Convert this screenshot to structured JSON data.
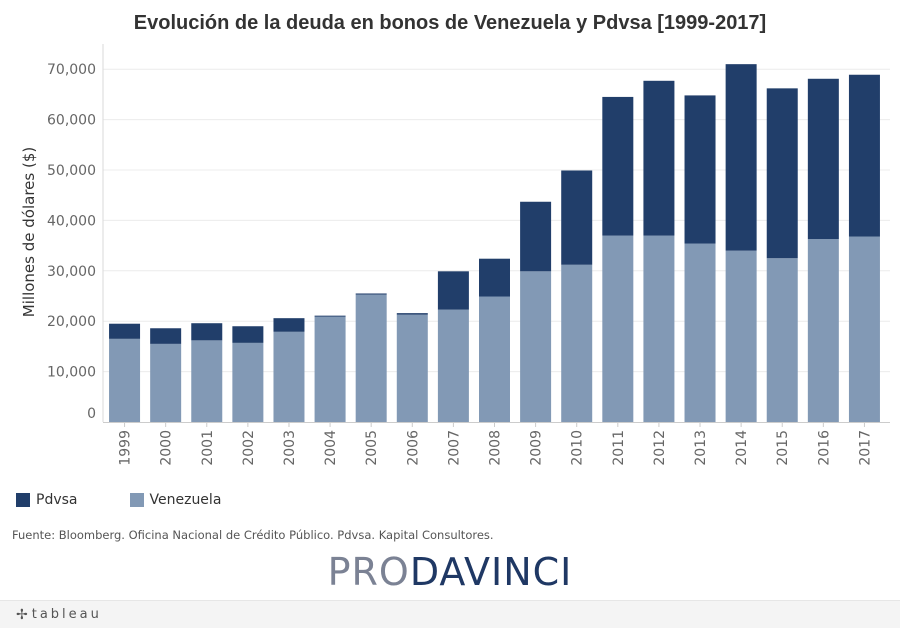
{
  "chart_data": {
    "type": "bar",
    "stacked": true,
    "title": "Evolución de la deuda en bonos de Venezuela y Pdvsa [1999-2017]",
    "xlabel": "",
    "ylabel": "Millones de dólares ($)",
    "ylim": [
      0,
      75000
    ],
    "yticks": [
      0,
      10000,
      20000,
      30000,
      40000,
      50000,
      60000,
      70000
    ],
    "ytick_labels": [
      "0",
      "10,000",
      "20,000",
      "30,000",
      "40,000",
      "50,000",
      "60,000",
      "70,000"
    ],
    "categories": [
      "1999",
      "2000",
      "2001",
      "2002",
      "2003",
      "2004",
      "2005",
      "2006",
      "2007",
      "2008",
      "2009",
      "2010",
      "2011",
      "2012",
      "2013",
      "2014",
      "2015",
      "2016",
      "2017"
    ],
    "series": [
      {
        "name": "Venezuela",
        "color": "#8299b5",
        "values": [
          16500,
          15500,
          16200,
          15700,
          17900,
          20900,
          25300,
          21300,
          22300,
          24900,
          29900,
          31200,
          37000,
          37000,
          35400,
          34000,
          32500,
          36300,
          36800
        ]
      },
      {
        "name": "Pdvsa",
        "color": "#213e6a",
        "values": [
          3000,
          3100,
          3400,
          3300,
          2700,
          200,
          200,
          300,
          7600,
          7500,
          13800,
          18700,
          27500,
          30700,
          29400,
          37000,
          33700,
          31800,
          32100
        ]
      }
    ],
    "legend": [
      {
        "name": "Pdvsa",
        "color": "#213e6a"
      },
      {
        "name": "Venezuela",
        "color": "#8299b5"
      }
    ],
    "legend_position": "bottom-left",
    "grid": true
  },
  "footer": {
    "source": "Fuente: Bloomberg. Oficina Nacional de Crédito Público. Pdvsa. Kapital Consultores.",
    "brand_part1": "PRO",
    "brand_part2": "DAVINCI",
    "tableau_icon": "✢",
    "tableau_label": "tableau"
  }
}
